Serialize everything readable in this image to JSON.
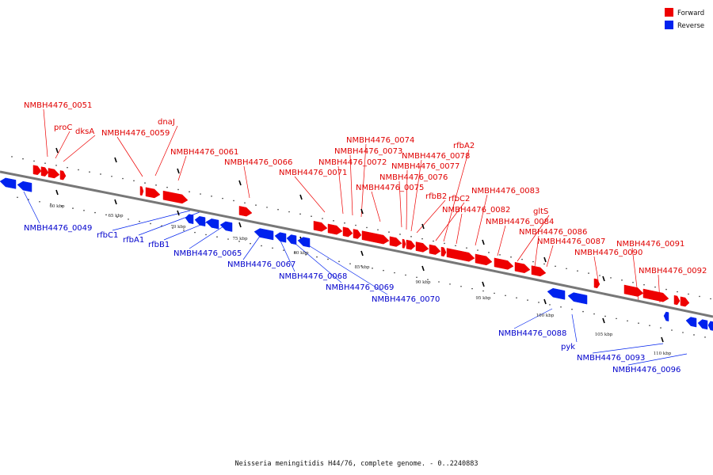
{
  "legend": {
    "forward_label": "Forward",
    "reverse_label": "Reverse",
    "forward_color": "#ee0000",
    "reverse_color": "#0022ee"
  },
  "caption": "Neisseria meningitidis H44/76, complete genome. - 0..2240883",
  "colors": {
    "forward": "#ee0000",
    "reverse": "#0022ee",
    "backbone": "#777777"
  },
  "ticks": [
    "60 kbp",
    "65 kbp",
    "70 kbp",
    "75 kbp",
    "80 kbp",
    "85 kbp",
    "90 kbp",
    "95 kbp",
    "100 kbp",
    "105 kbp",
    "110 kbp"
  ],
  "genes": {
    "forward": [
      "NMBH4476_0051",
      "proC",
      "dksA",
      "NMBH4476_0059",
      "dnaJ",
      "NMBH4476_0061",
      "NMBH4476_0066",
      "NMBH4476_0071",
      "NMBH4476_0072",
      "NMBH4476_0073",
      "NMBH4476_0074",
      "NMBH4476_0075",
      "NMBH4476_0076",
      "NMBH4476_0077",
      "NMBH4476_0078",
      "rfbA2",
      "rfbB2",
      "rfbC2",
      "NMBH4476_0082",
      "NMBH4476_0083",
      "NMBH4476_0084",
      "gltS",
      "NMBH4476_0086",
      "NMBH4476_0087",
      "NMBH4476_0090",
      "NMBH4476_0091",
      "NMBH4476_0092"
    ],
    "reverse": [
      "NMBH4476_0049",
      "rfbC1",
      "rfbA1",
      "rfbB1",
      "NMBH4476_0065",
      "NMBH4476_0067",
      "NMBH4476_0068",
      "NMBH4476_0069",
      "NMBH4476_0070",
      "NMBH4476_0088",
      "pyk",
      "NMBH4476_0093",
      "NMBH4476_0096"
    ]
  }
}
